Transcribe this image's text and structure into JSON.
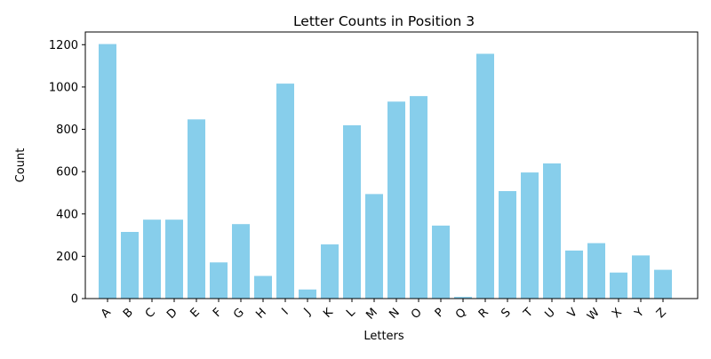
{
  "chart_data": {
    "type": "bar",
    "title": "Letter Counts in Position 3",
    "xlabel": "Letters",
    "ylabel": "Count",
    "categories": [
      "A",
      "B",
      "C",
      "D",
      "E",
      "F",
      "G",
      "H",
      "I",
      "J",
      "K",
      "L",
      "M",
      "N",
      "O",
      "P",
      "Q",
      "R",
      "S",
      "T",
      "U",
      "V",
      "W",
      "X",
      "Y",
      "Z"
    ],
    "values": [
      1203,
      315,
      373,
      373,
      847,
      171,
      352,
      107,
      1016,
      43,
      256,
      819,
      494,
      931,
      957,
      345,
      8,
      1157,
      508,
      596,
      639,
      227,
      262,
      123,
      204,
      136
    ],
    "ylim": [
      0,
      1260
    ],
    "yticks": [
      0,
      200,
      400,
      600,
      800,
      1000,
      1200
    ],
    "bar_color": "#87ceeb",
    "grid": false,
    "legend": "none"
  }
}
